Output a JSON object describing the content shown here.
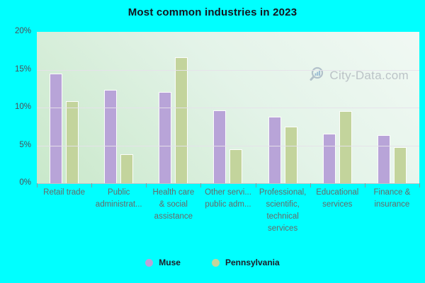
{
  "title": "Most common industries in 2023",
  "watermark": "City-Data.com",
  "colors": {
    "page_background": "#00ffff",
    "muse_bar": "#b8a4d8",
    "pennsylvania_bar": "#c3d49c",
    "plot_gradient_start": "#c9e8ca",
    "plot_gradient_end": "#f1f9f4",
    "gridline": "#e6e2ea",
    "axis_text": "#4d4d57",
    "category_text": "#686868",
    "title_text": "#14141e",
    "watermark_text": "#b3bac0"
  },
  "y_axis": {
    "ticks": [
      {
        "label": "20%",
        "value": 20
      },
      {
        "label": "15%",
        "value": 15
      },
      {
        "label": "10%",
        "value": 10
      },
      {
        "label": "5%",
        "value": 5
      },
      {
        "label": "0%",
        "value": 0
      }
    ]
  },
  "legend": [
    {
      "label": "Muse",
      "color": "#b8a4d8"
    },
    {
      "label": "Pennsylvania",
      "color": "#c3d49c"
    }
  ],
  "chart_data": {
    "type": "bar",
    "title": "Most common industries in 2023",
    "categories": [
      "Retail trade",
      "Public administrat...",
      "Health care & social assistance",
      "Other servi... public adm...",
      "Professional, scientific, technical services",
      "Educational services",
      "Finance & insurance"
    ],
    "category_display_lines": [
      [
        "Retail trade"
      ],
      [
        "Public",
        "administrat..."
      ],
      [
        "Health care",
        "& social",
        "assistance"
      ],
      [
        "Other servi...",
        "public adm..."
      ],
      [
        "Professional,",
        "scientific,",
        "technical",
        "services"
      ],
      [
        "Educational",
        "services"
      ],
      [
        "Finance &",
        "insurance"
      ]
    ],
    "series": [
      {
        "name": "Muse",
        "color": "#b8a4d8",
        "values": [
          14.5,
          12.3,
          12.1,
          9.6,
          8.8,
          6.5,
          6.4
        ]
      },
      {
        "name": "Pennsylvania",
        "color": "#c3d49c",
        "values": [
          10.8,
          3.8,
          16.6,
          4.5,
          7.5,
          9.5,
          4.8
        ]
      }
    ],
    "xlabel": "",
    "ylabel": "",
    "ylim": [
      0,
      20
    ],
    "ytick_step": 5,
    "grid": "horizontal",
    "legend_position": "bottom"
  }
}
